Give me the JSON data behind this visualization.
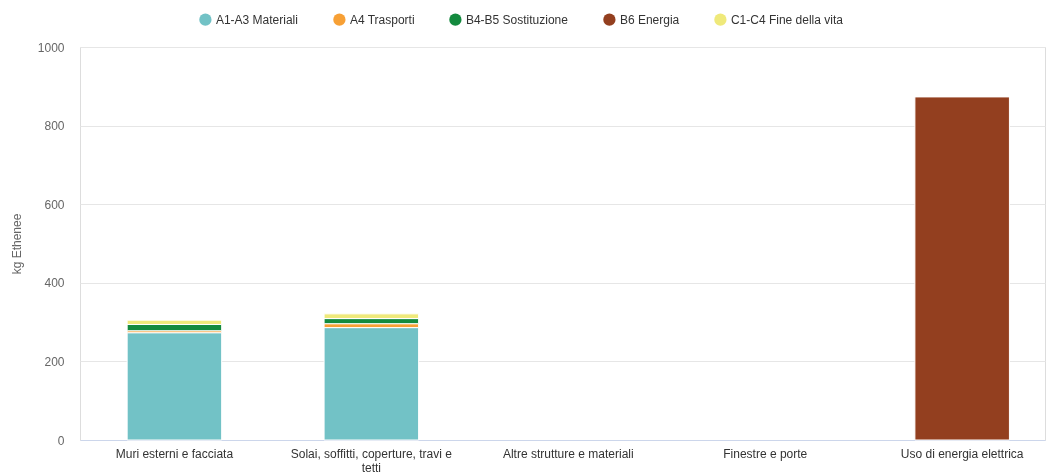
{
  "chart_data": {
    "type": "bar",
    "stacked": true,
    "ylabel": "kg Ethenee",
    "ylim": [
      0,
      1000
    ],
    "yticks": [
      0,
      200,
      400,
      600,
      800,
      1000
    ],
    "grid": "y",
    "legend": "top",
    "categories": [
      "Muri esterni e facciata",
      "Solai, soffitti, coperture, travi e tetti",
      "Altre strutture e materiali",
      "Finestre e porte",
      "Uso di energia elettrica"
    ],
    "series": [
      {
        "name": "A1-A3 Materiali",
        "color": "#72c2c6",
        "values": [
          273,
          286,
          null,
          null,
          null
        ]
      },
      {
        "name": "A4 Trasporti",
        "color": "#f7a035",
        "values": [
          5,
          10,
          null,
          null,
          null
        ]
      },
      {
        "name": "B4-B5 Sostituzione",
        "color": "#138a3e",
        "values": [
          16,
          13,
          null,
          null,
          null
        ]
      },
      {
        "name": "B6 Energia",
        "color": "#933f1f",
        "values": [
          null,
          null,
          null,
          null,
          873
        ]
      },
      {
        "name": "C1-C4 Fine della vita",
        "color": "#efe97a",
        "values": [
          11,
          12,
          null,
          null,
          null
        ]
      }
    ]
  }
}
